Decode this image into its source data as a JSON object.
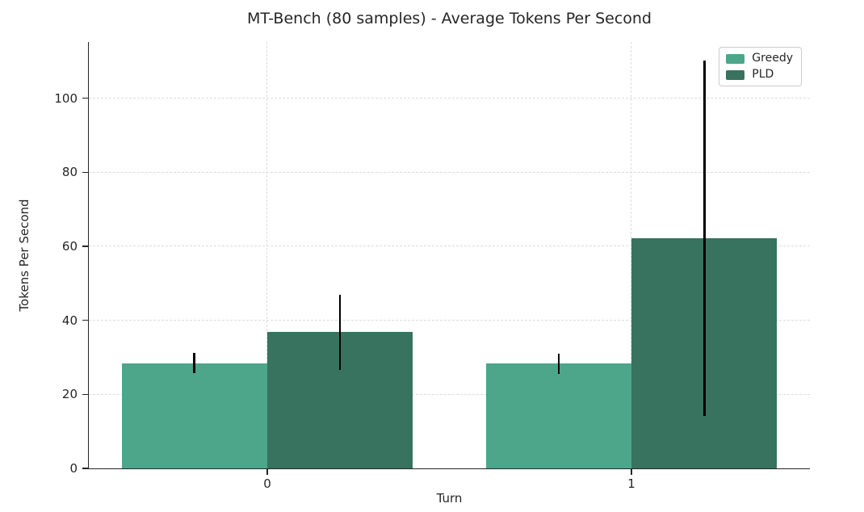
{
  "title": "MT-Bench (80 samples) - Average Tokens Per Second",
  "chart_data": {
    "type": "bar",
    "title": "MT-Bench (80 samples) - Average Tokens Per Second",
    "xlabel": "Turn",
    "ylabel": "Tokens Per Second",
    "categories": [
      "0",
      "1"
    ],
    "series": [
      {
        "name": "Greedy",
        "color": "#4DA68A",
        "values": [
          28.4,
          28.3
        ],
        "errors": [
          2.7,
          2.7
        ]
      },
      {
        "name": "PLD",
        "color": "#37735E",
        "values": [
          36.8,
          62.2
        ],
        "errors": [
          10.2,
          48.0
        ]
      }
    ],
    "yticks": [
      0,
      20,
      40,
      60,
      80,
      100
    ],
    "ylim": [
      0,
      115.2
    ],
    "xlim": [
      -0.49,
      1.49
    ],
    "bar_width": 0.4,
    "grid": "both, dashed",
    "grid_color": "#dcdcdc",
    "legend_position": "upper right",
    "error_color": "#000000",
    "axis_color": "#262626",
    "background_color": "#ffffff"
  }
}
